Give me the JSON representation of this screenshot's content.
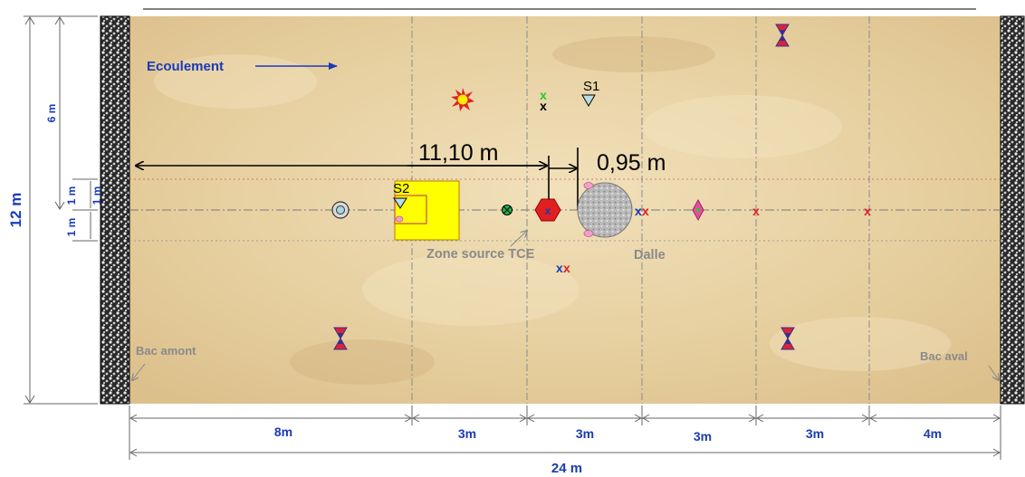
{
  "flow_label": "Ecoulement",
  "zone_source_label": "Zone source TCE",
  "dalle_label": "Dalle",
  "bac_amont_label": "Bac amont",
  "bac_aval_label": "Bac aval",
  "distance_11_label": "11,10 m",
  "distance_095_label": "0,95 m",
  "well_s1_label": "S1",
  "well_s2_label": "S2",
  "left_dim_12m": "12 m",
  "left_dim_6m": "6 m",
  "left_dim_1m_a": "1 m",
  "left_dim_1m_b": "1 m",
  "left_dim_1m_c": "1 m",
  "bottom_segments": [
    "8m",
    "3m",
    "3m",
    "3m",
    "3m",
    "4m"
  ],
  "total_length_label": "24 m",
  "colors": {
    "sand": "#e8d3a6",
    "dim_blue": "#1a3bb8",
    "marker_red": "#e0202a",
    "hourglass_red": "#d8233a",
    "hourglass_blue": "#3a2f8c",
    "source_yellow": "#ffff00"
  }
}
